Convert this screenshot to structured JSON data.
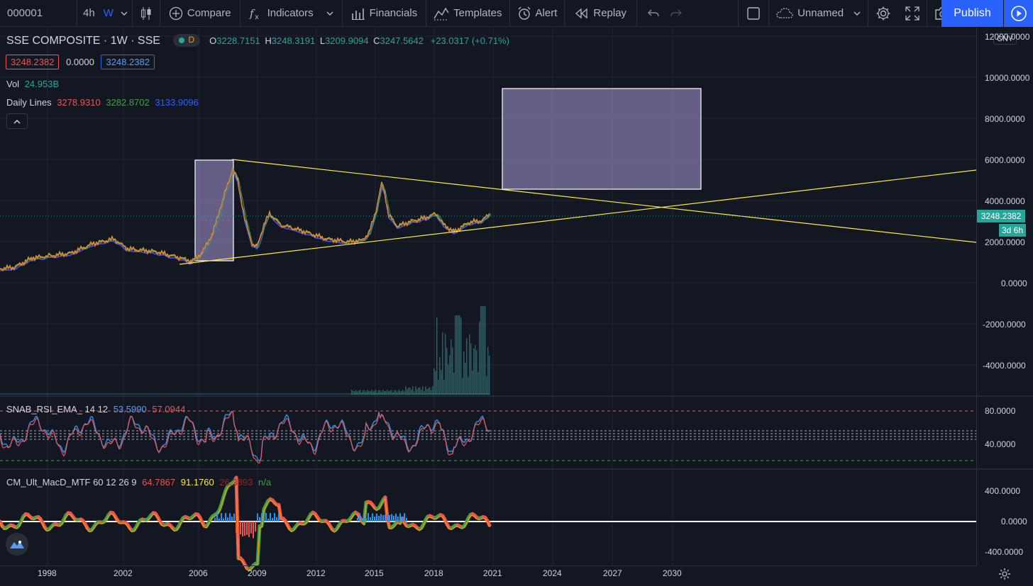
{
  "toolbar": {
    "symbol": "000001",
    "interval_4h": "4h",
    "interval_w": "W",
    "compare": "Compare",
    "indicators": "Indicators",
    "financials": "Financials",
    "templates": "Templates",
    "alert": "Alert",
    "replay": "Replay",
    "layout_name": "Unnamed",
    "publish": "Publish"
  },
  "legend": {
    "title": "SSE COMPOSITE · 1W · SSE",
    "d_badge": "D",
    "o_label": "O",
    "o_value": "3228.7151",
    "h_label": "H",
    "h_value": "3248.3191",
    "l_label": "L",
    "l_value": "3209.9094",
    "c_label": "C",
    "c_value": "3247.5642",
    "change": "+23.0317 (+0.71%)",
    "sell_price": "3248.2382",
    "spread": "0.0000",
    "buy_price": "3248.2382",
    "vol_label": "Vol",
    "vol_value": "24.953B",
    "daily_label": "Daily Lines",
    "daily_v1": "3278.9310",
    "daily_v2": "3282.8702",
    "daily_v3": "3133.9096"
  },
  "rsi": {
    "label": "SNAB_RSI_EMA_ 14 12",
    "v1": "53.5990",
    "v2": "57.0944"
  },
  "macd": {
    "label": "CM_Ult_MacD_MTF 60 12 26 9",
    "v1": "64.7867",
    "v2": "91.1760",
    "v3": "26.3893",
    "v4": "n/a"
  },
  "price_axis": {
    "currency": "CNY",
    "ticks": [
      "12000.0000",
      "10000.0000",
      "8000.0000",
      "6000.0000",
      "4000.0000",
      "2000.0000",
      "0.0000",
      "-2000.0000",
      "-4000.0000"
    ],
    "current_price": "3248.2382",
    "countdown": "3d 6h",
    "rsi_ticks": [
      "80.0000",
      "40.0000"
    ],
    "macd_ticks": [
      "400.0000",
      "0.0000",
      "-400.0000"
    ]
  },
  "time_axis": [
    "1998",
    "2002",
    "2006",
    "2009",
    "2012",
    "2015",
    "2018",
    "2021",
    "2024",
    "2027",
    "2030"
  ],
  "colors": {
    "background": "#131722",
    "grid": "#2a2e39",
    "accent": "#2962ff",
    "up": "#26a69a",
    "down": "#ef5350",
    "trendline": "#ffeb3b",
    "rect_fill": "#9c8fc9"
  },
  "icons": [
    "candles-icon",
    "plus-circle-icon",
    "fx-icon",
    "financials-icon",
    "templates-icon",
    "alarm-icon",
    "replay-icon",
    "undo-icon",
    "redo-icon",
    "square-icon",
    "cloud-icon",
    "gear-icon",
    "fullscreen-icon",
    "camera-icon",
    "play-icon",
    "tradingview-logo-icon",
    "settings-icon"
  ]
}
